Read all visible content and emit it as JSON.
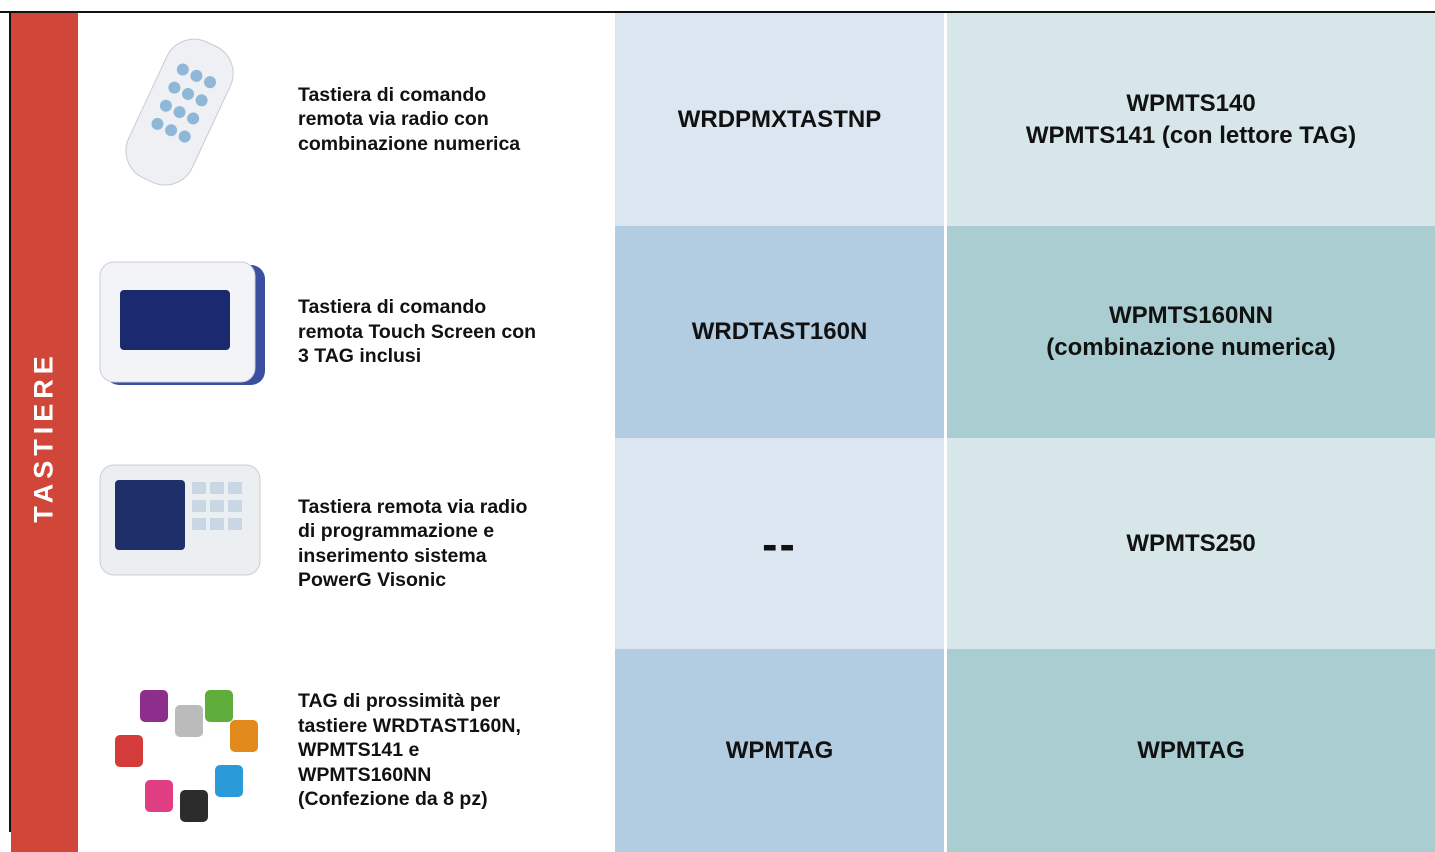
{
  "section_label": "TASTIERE",
  "rows": [
    {
      "description": [
        "Tastiera di comando",
        "remota via radio con",
        "combinazione numerica"
      ],
      "code_a": [
        "WRDPMXTASTNP"
      ],
      "code_b": [
        "WPMTS140",
        "WPMTS141 (con lettore TAG)"
      ]
    },
    {
      "description": [
        "Tastiera di comando",
        "remota Touch Screen con",
        "3 TAG inclusi"
      ],
      "code_a": [
        "WRDTAST160N"
      ],
      "code_b": [
        "WPMTS160NN",
        "(combinazione numerica)"
      ]
    },
    {
      "description": [
        "Tastiera remota via radio",
        "di programmazione e",
        "inserimento sistema",
        "PowerG Visonic"
      ],
      "code_a": [
        "--"
      ],
      "code_b": [
        "WPMTS250"
      ]
    },
    {
      "description": [
        "TAG di prossimità per",
        "tastiere WRDTAST160N,",
        "WPMTS141 e",
        "WPMTS160NN",
        "(Confezione da 8 pz)"
      ],
      "code_a": [
        "WPMTAG"
      ],
      "code_b": [
        "WPMTAG"
      ]
    }
  ]
}
